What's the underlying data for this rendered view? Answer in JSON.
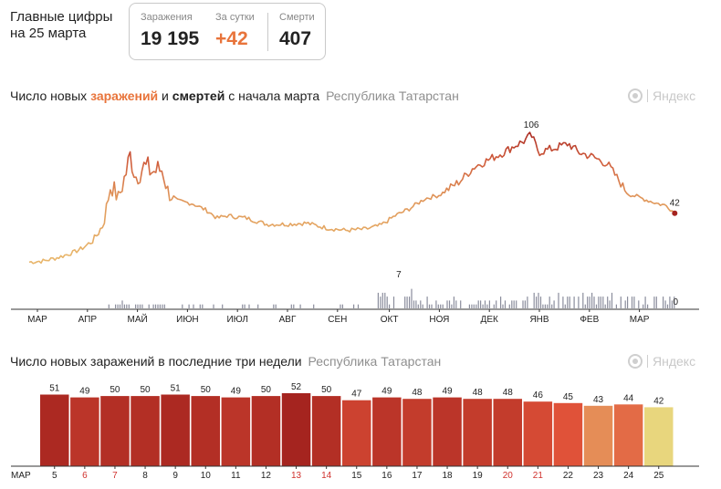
{
  "header": {
    "title_line1": "Главные цифры",
    "title_line2": "на 25 марта"
  },
  "stats": {
    "infections_label": "Заражения",
    "infections_value": "19 195",
    "daily_label": "За сутки",
    "daily_value": "+42",
    "deaths_label": "Смерти",
    "deaths_value": "407"
  },
  "chart1": {
    "title_part1": "Число новых ",
    "title_infections": "заражений",
    "title_part2": " и ",
    "title_deaths": "смертей",
    "title_part3": " с начала марта",
    "region": "Республика Татарстан",
    "watermark": "Яндекс",
    "peak_infections_label": "106",
    "last_infections_label": "42",
    "peak_deaths_label": "7",
    "last_deaths_label": "0",
    "month_labels": [
      "МАР",
      "АПР",
      "МАЙ",
      "ИЮН",
      "ИЮЛ",
      "АВГ",
      "СЕН",
      "ОКТ",
      "НОЯ",
      "ДЕК",
      "ЯНВ",
      "ФЕВ",
      "МАР"
    ]
  },
  "chart2": {
    "title": "Число новых заражений в последние три недели",
    "region": "Республика Татарстан",
    "watermark": "Яндекс",
    "month_label": "МАР"
  },
  "colors": {
    "accent_orange": "#e8743b",
    "deaths_bars": "#8a8d9c",
    "infection_low": "#e8b56a",
    "infection_high": "#a5241f"
  },
  "chart_data": [
    {
      "type": "line",
      "title": "Число новых заражений и смертей с начала марта",
      "x_axis": "months from March (year 1) to March (year 2)",
      "y_max_infections": 110,
      "infections_keypoints": [
        {
          "m": 0.0,
          "v": 2
        },
        {
          "m": 0.3,
          "v": 3
        },
        {
          "m": 0.6,
          "v": 6
        },
        {
          "m": 0.9,
          "v": 10
        },
        {
          "m": 1.1,
          "v": 14
        },
        {
          "m": 1.3,
          "v": 20
        },
        {
          "m": 1.5,
          "v": 33
        },
        {
          "m": 1.65,
          "v": 66
        },
        {
          "m": 1.8,
          "v": 54
        },
        {
          "m": 1.95,
          "v": 74
        },
        {
          "m": 2.05,
          "v": 90
        },
        {
          "m": 2.15,
          "v": 72
        },
        {
          "m": 2.3,
          "v": 80
        },
        {
          "m": 2.5,
          "v": 76
        },
        {
          "m": 2.7,
          "v": 78
        },
        {
          "m": 2.8,
          "v": 60
        },
        {
          "m": 3.0,
          "v": 52
        },
        {
          "m": 3.3,
          "v": 50
        },
        {
          "m": 3.6,
          "v": 44
        },
        {
          "m": 3.8,
          "v": 38
        },
        {
          "m": 4.0,
          "v": 40
        },
        {
          "m": 4.4,
          "v": 38
        },
        {
          "m": 4.8,
          "v": 33
        },
        {
          "m": 5.2,
          "v": 33
        },
        {
          "m": 5.6,
          "v": 34
        },
        {
          "m": 6.0,
          "v": 30
        },
        {
          "m": 6.4,
          "v": 28
        },
        {
          "m": 6.8,
          "v": 29
        },
        {
          "m": 7.1,
          "v": 32
        },
        {
          "m": 7.4,
          "v": 40
        },
        {
          "m": 7.7,
          "v": 46
        },
        {
          "m": 8.0,
          "v": 54
        },
        {
          "m": 8.3,
          "v": 57
        },
        {
          "m": 8.7,
          "v": 68
        },
        {
          "m": 9.0,
          "v": 80
        },
        {
          "m": 9.3,
          "v": 86
        },
        {
          "m": 9.6,
          "v": 92
        },
        {
          "m": 9.8,
          "v": 97
        },
        {
          "m": 10.0,
          "v": 101
        },
        {
          "m": 10.15,
          "v": 106
        },
        {
          "m": 10.3,
          "v": 92
        },
        {
          "m": 10.6,
          "v": 95
        },
        {
          "m": 10.9,
          "v": 99
        },
        {
          "m": 11.1,
          "v": 92
        },
        {
          "m": 11.4,
          "v": 88
        },
        {
          "m": 11.7,
          "v": 82
        },
        {
          "m": 11.9,
          "v": 70
        },
        {
          "m": 12.1,
          "v": 58
        },
        {
          "m": 12.4,
          "v": 54
        },
        {
          "m": 12.7,
          "v": 50
        },
        {
          "m": 12.9,
          "v": 48
        },
        {
          "m": 13.05,
          "v": 42
        }
      ],
      "deaths_peak": 7,
      "deaths_last": 0
    },
    {
      "type": "bar",
      "title": "Число новых заражений в последние три недели",
      "categories": [
        "5",
        "6",
        "7",
        "8",
        "9",
        "10",
        "11",
        "12",
        "13",
        "14",
        "15",
        "16",
        "17",
        "18",
        "19",
        "20",
        "21",
        "22",
        "23",
        "24",
        "25"
      ],
      "values": [
        51,
        49,
        50,
        50,
        51,
        50,
        49,
        50,
        52,
        50,
        47,
        49,
        48,
        49,
        48,
        48,
        46,
        45,
        43,
        44,
        42
      ],
      "weekend": [
        false,
        true,
        true,
        false,
        false,
        false,
        false,
        false,
        true,
        true,
        false,
        false,
        false,
        false,
        false,
        true,
        true,
        false,
        false,
        false,
        false
      ],
      "xlabel": "МАР"
    }
  ]
}
